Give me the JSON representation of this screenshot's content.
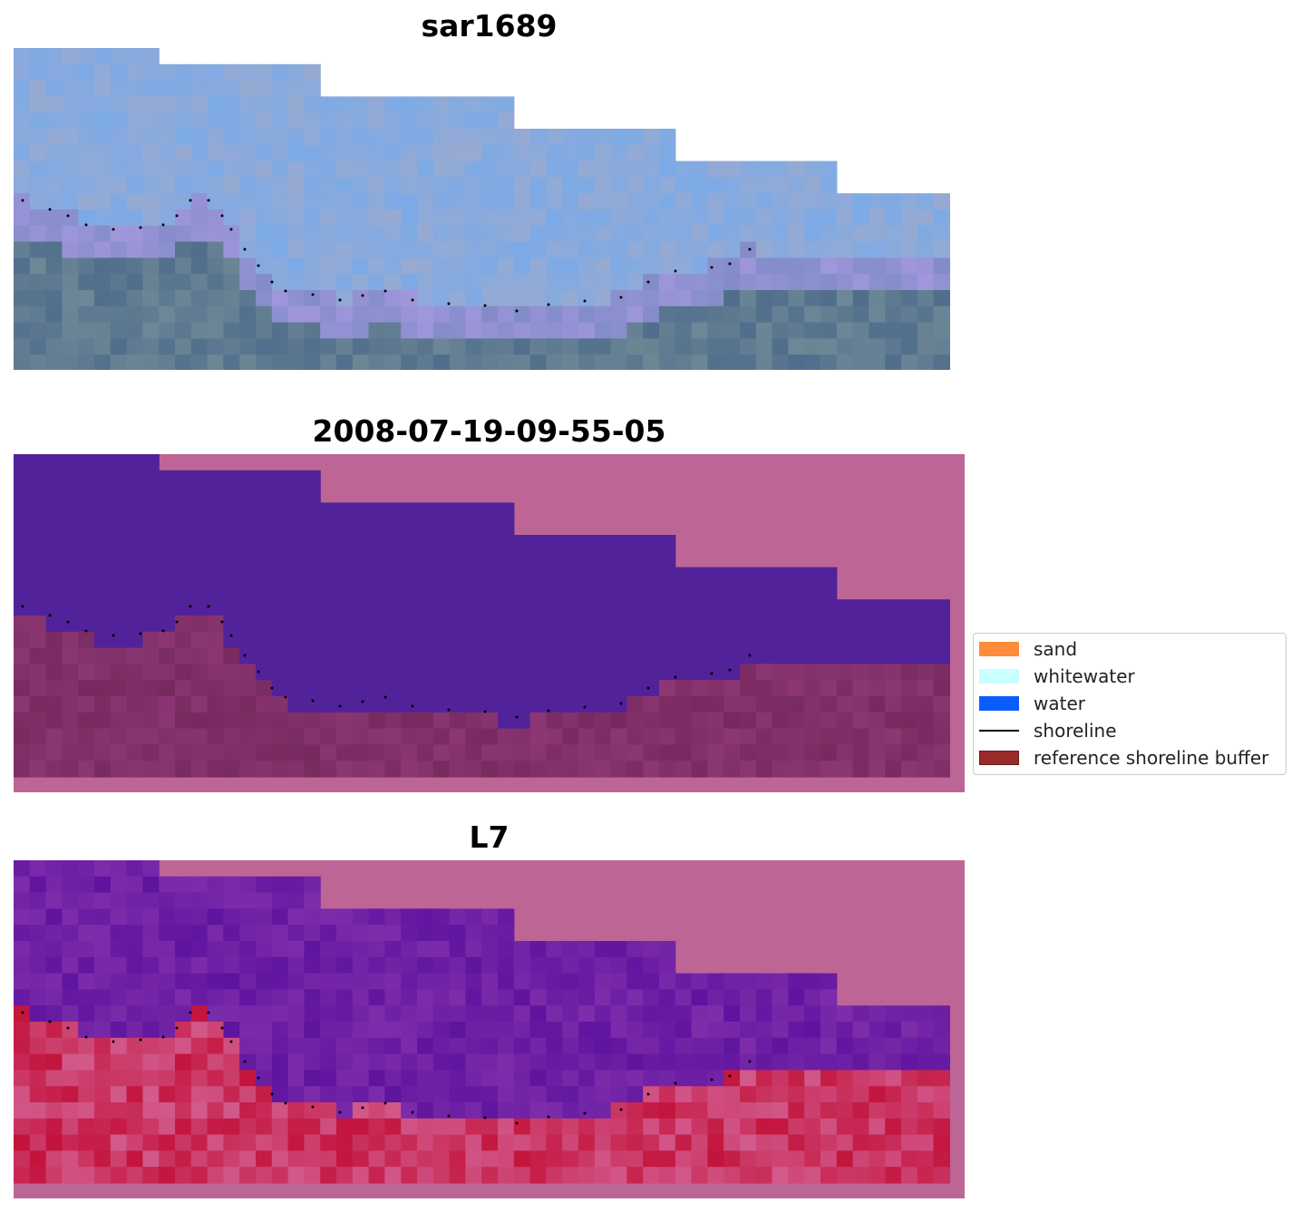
{
  "panels": [
    {
      "title": "sar1689",
      "kind": "rgb"
    },
    {
      "title": "2008-07-19-09-55-05",
      "kind": "classified"
    },
    {
      "title": "L7",
      "kind": "ndwi"
    }
  ],
  "legend": {
    "items": [
      {
        "label": "sand",
        "color": "#ff8c3a",
        "type": "patch"
      },
      {
        "label": "whitewater",
        "color": "#c8ffff",
        "type": "patch"
      },
      {
        "label": "water",
        "color": "#0a5cff",
        "type": "patch"
      },
      {
        "label": "shoreline",
        "color": "#000000",
        "type": "line"
      },
      {
        "label": "reference shoreline buffer",
        "color": "#9a2a2a",
        "type": "patch"
      }
    ]
  },
  "colors": {
    "no_data": "#bd6695",
    "water_class": "#52229a",
    "land_class": "#7c2e64",
    "shoreline": "#000000"
  }
}
